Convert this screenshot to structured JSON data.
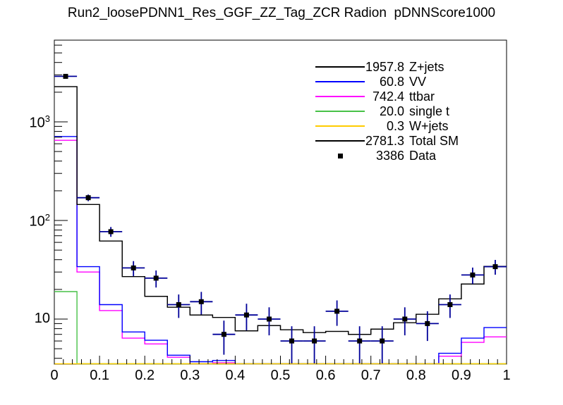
{
  "chart_data": {
    "type": "bar",
    "subtype": "stacked-step-histogram-log-y",
    "title": "Run2_loosePDNN1_Res_GGF_ZZ_Tag_ZCR Radion  pDNNScore1000",
    "xlabel": "",
    "ylabel": "",
    "x_range": [
      0,
      1
    ],
    "n_bins": 20,
    "bin_width": 0.05,
    "y_scale": "log",
    "y_range": [
      3.5,
      6740
    ],
    "grid": "off",
    "legend_position": "top-right",
    "x_tick_labels": [
      "0",
      "0.1",
      "0.2",
      "0.3",
      "0.4",
      "0.5",
      "0.6",
      "0.7",
      "0.8",
      "0.9",
      "1"
    ],
    "y_major_ticks": [
      {
        "value": 10,
        "base": "10",
        "exp": ""
      },
      {
        "value": 100,
        "base": "10",
        "exp": "2"
      },
      {
        "value": 1000,
        "base": "10",
        "exp": "3"
      }
    ],
    "series": [
      {
        "name": "ttbar",
        "yield": "742.4",
        "color": "#ff00ff",
        "values": [
          650,
          30,
          12.2,
          6.4,
          5.6,
          4.1,
          3.5,
          3.6,
          3.5,
          3.5,
          3.5,
          3.5,
          3.5,
          3.5,
          3.5,
          3.5,
          3.5,
          4.2,
          5.8,
          6.6
        ]
      },
      {
        "name": "VV",
        "yield": "60.8",
        "color": "#0000ff",
        "values": [
          710,
          34,
          14,
          7.4,
          6.1,
          4.3,
          3.7,
          3.8,
          3.5,
          3.5,
          3.5,
          3.5,
          3.5,
          3.5,
          3.5,
          3.5,
          3.5,
          4.5,
          6.4,
          8.2
        ]
      },
      {
        "name": "single t",
        "yield": "20.0",
        "color": "#47c147",
        "values": [
          19,
          3.5,
          3.5,
          3.5,
          3.5,
          3.5,
          3.5,
          3.5,
          3.5,
          3.5,
          3.5,
          3.5,
          3.5,
          3.5,
          3.5,
          3.5,
          3.5,
          3.5,
          3.5,
          3.5
        ]
      },
      {
        "name": "W+jets",
        "yield": "0.3",
        "color": "#ffcc00",
        "values": [
          3.5,
          3.5,
          3.5,
          3.5,
          3.5,
          3.5,
          3.5,
          3.5,
          3.5,
          3.5,
          3.5,
          3.5,
          3.5,
          3.5,
          3.5,
          3.5,
          3.5,
          3.5,
          3.5,
          3.5
        ]
      },
      {
        "name": "Z+jets",
        "yield": "1957.8",
        "color": "#000000",
        "values": [
          2275,
          145,
          62,
          27,
          17,
          13.2,
          11,
          10.4,
          7.6,
          8.6,
          7.8,
          7.3,
          7.5,
          7.0,
          7.9,
          9.2,
          11.2,
          16,
          22.7,
          34.3
        ]
      },
      {
        "name": "Total SM",
        "yield": "2781.3",
        "color": "#000000",
        "values": [
          2275,
          145,
          62,
          27,
          17,
          13.2,
          11,
          10.4,
          7.6,
          8.6,
          7.8,
          7.3,
          7.5,
          7.0,
          7.9,
          9.2,
          11.2,
          16,
          22.7,
          34.3
        ]
      }
    ],
    "data_series": {
      "name": "Data",
      "yield": "3386",
      "marker_color": "#000000",
      "error_color": "#000099",
      "values": [
        2892,
        170,
        77,
        33,
        26,
        14,
        15,
        7,
        11,
        10,
        6,
        6,
        12,
        6,
        6,
        10,
        9,
        14,
        28,
        34
      ]
    }
  },
  "legend": {
    "rows": [
      {
        "num": "1957.8",
        "label": "Z+jets",
        "color": "#000000",
        "sample": "line"
      },
      {
        "num": "60.8",
        "label": "VV",
        "color": "#0000ff",
        "sample": "line"
      },
      {
        "num": "742.4",
        "label": "ttbar",
        "color": "#ff00ff",
        "sample": "line"
      },
      {
        "num": "20.0",
        "label": "single t",
        "color": "#47c147",
        "sample": "line"
      },
      {
        "num": "0.3",
        "label": "W+jets",
        "color": "#ffcc00",
        "sample": "line"
      },
      {
        "num": "2781.3",
        "label": "Total SM",
        "color": "#000000",
        "sample": "line"
      },
      {
        "num": "3386",
        "label": "Data",
        "color": "#000000",
        "sample": "marker"
      }
    ]
  }
}
